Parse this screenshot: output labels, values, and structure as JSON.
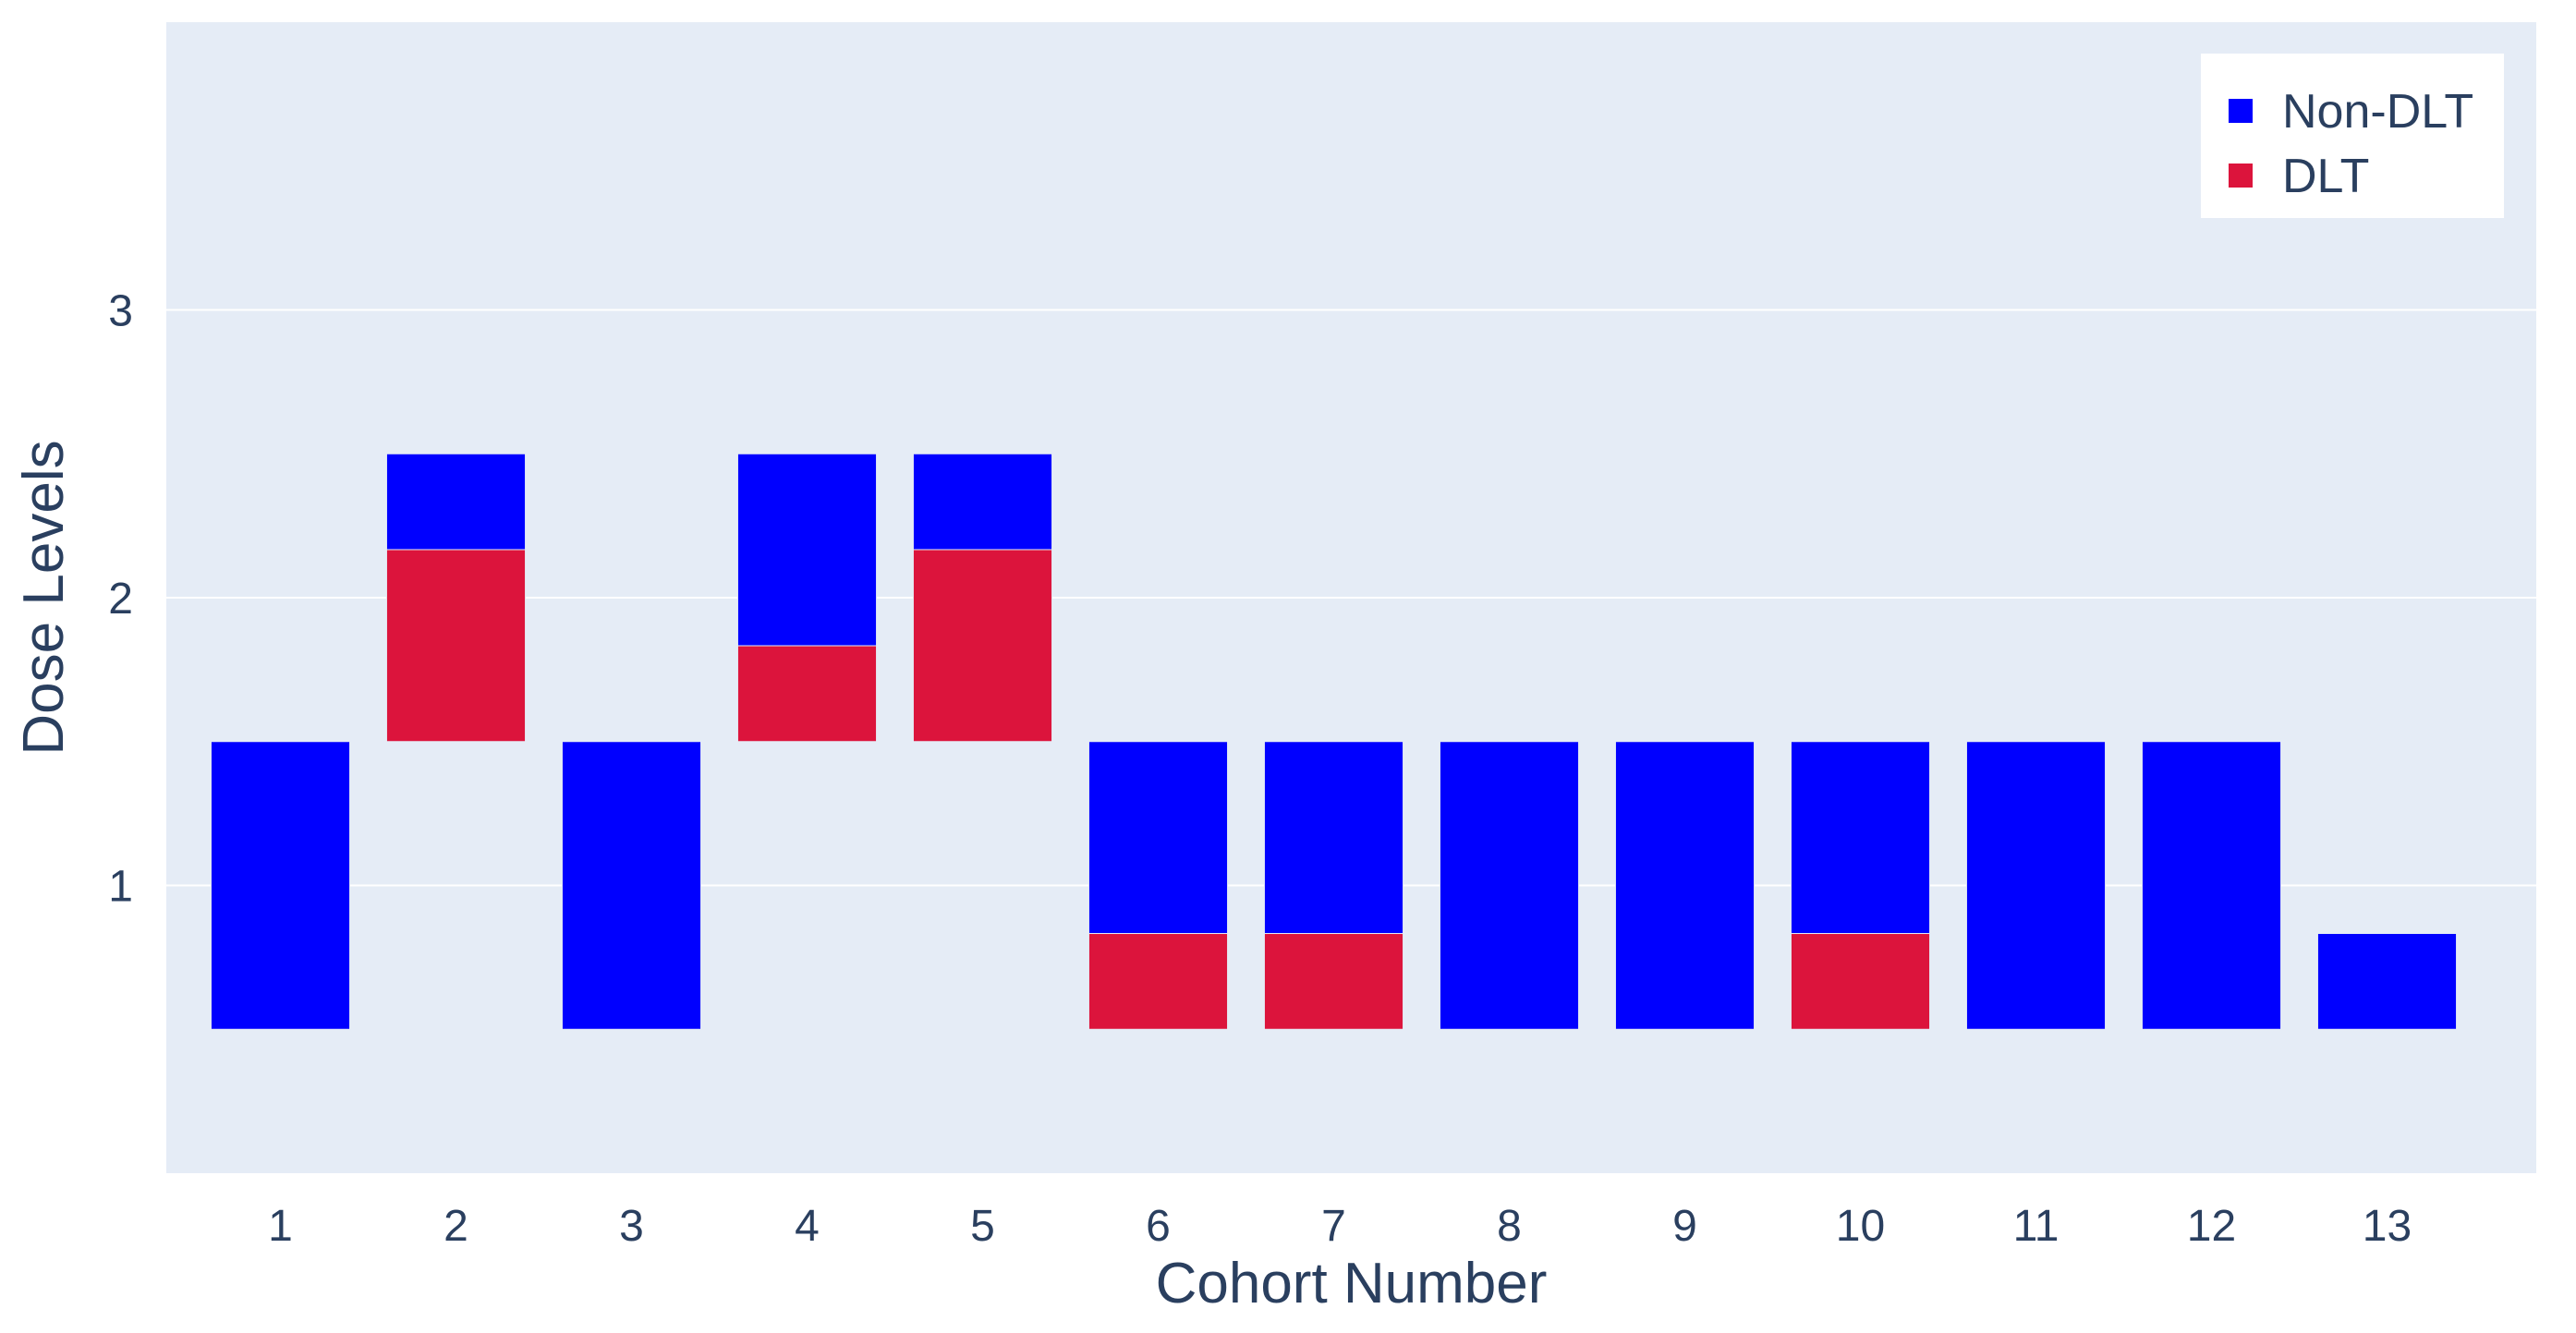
{
  "chart_data": {
    "type": "bar",
    "mode": "stacked-floating",
    "xlabel": "Cohort Number",
    "ylabel": "Dose Levels",
    "categories": [
      "1",
      "2",
      "3",
      "4",
      "5",
      "6",
      "7",
      "8",
      "9",
      "10",
      "11",
      "12",
      "13"
    ],
    "ylim": [
      0,
      4
    ],
    "yticks": [
      1,
      2,
      3
    ],
    "grid": true,
    "legend_position": "top-right",
    "legend": [
      {
        "name": "Non-DLT",
        "color": "#0000ff"
      },
      {
        "name": "DLT",
        "color": "#dc143c"
      }
    ],
    "background": "#e5ecf6",
    "segments": [
      {
        "x": 1,
        "series": "Non-DLT",
        "y0": 0.5,
        "y1": 1.5
      },
      {
        "x": 2,
        "series": "DLT",
        "y0": 1.5,
        "y1": 2.167
      },
      {
        "x": 2,
        "series": "Non-DLT",
        "y0": 2.167,
        "y1": 2.5
      },
      {
        "x": 3,
        "series": "Non-DLT",
        "y0": 0.5,
        "y1": 1.5
      },
      {
        "x": 4,
        "series": "DLT",
        "y0": 1.5,
        "y1": 1.833
      },
      {
        "x": 4,
        "series": "Non-DLT",
        "y0": 1.833,
        "y1": 2.5
      },
      {
        "x": 5,
        "series": "DLT",
        "y0": 1.5,
        "y1": 2.167
      },
      {
        "x": 5,
        "series": "Non-DLT",
        "y0": 2.167,
        "y1": 2.5
      },
      {
        "x": 6,
        "series": "DLT",
        "y0": 0.5,
        "y1": 0.833
      },
      {
        "x": 6,
        "series": "Non-DLT",
        "y0": 0.833,
        "y1": 1.5
      },
      {
        "x": 7,
        "series": "DLT",
        "y0": 0.5,
        "y1": 0.833
      },
      {
        "x": 7,
        "series": "Non-DLT",
        "y0": 0.833,
        "y1": 1.5
      },
      {
        "x": 8,
        "series": "Non-DLT",
        "y0": 0.5,
        "y1": 1.5
      },
      {
        "x": 9,
        "series": "Non-DLT",
        "y0": 0.5,
        "y1": 1.5
      },
      {
        "x": 10,
        "series": "DLT",
        "y0": 0.5,
        "y1": 0.833
      },
      {
        "x": 10,
        "series": "Non-DLT",
        "y0": 0.833,
        "y1": 1.5
      },
      {
        "x": 11,
        "series": "Non-DLT",
        "y0": 0.5,
        "y1": 1.5
      },
      {
        "x": 12,
        "series": "Non-DLT",
        "y0": 0.5,
        "y1": 1.5
      },
      {
        "x": 13,
        "series": "Non-DLT",
        "y0": 0.5,
        "y1": 0.833
      }
    ]
  }
}
